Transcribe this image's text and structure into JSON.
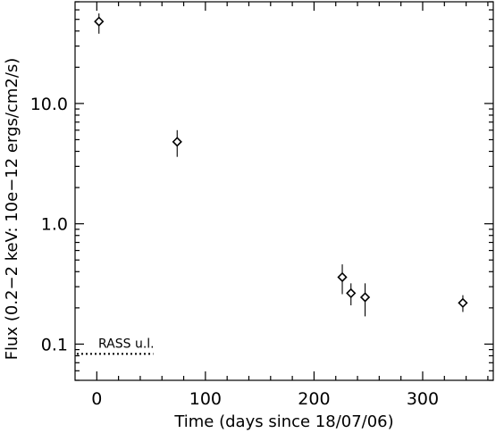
{
  "chart_data": {
    "type": "scatter",
    "xlabel": "Time (days since 18/07/06)",
    "ylabel": "Flux (0.2−2 keV: 10e−12 ergs/cm2/s)",
    "x_scale": "linear",
    "y_scale": "log",
    "xlim": [
      -20,
      365
    ],
    "ylim": [
      0.05,
      70
    ],
    "x_ticks": [
      0,
      100,
      200,
      300
    ],
    "x_tick_labels": [
      "0",
      "100",
      "200",
      "300"
    ],
    "y_ticks": [
      0.1,
      1.0,
      10.0
    ],
    "y_tick_labels": [
      "0.1",
      "1.0",
      "10.0"
    ],
    "marker": "diamond",
    "points": [
      {
        "x": 2,
        "y": 48,
        "y_lo": 38,
        "y_hi": 56
      },
      {
        "x": 74,
        "y": 4.8,
        "y_lo": 3.6,
        "y_hi": 6.0
      },
      {
        "x": 226,
        "y": 0.36,
        "y_lo": 0.26,
        "y_hi": 0.46
      },
      {
        "x": 234,
        "y": 0.265,
        "y_lo": 0.21,
        "y_hi": 0.32
      },
      {
        "x": 247,
        "y": 0.245,
        "y_lo": 0.17,
        "y_hi": 0.32
      },
      {
        "x": 337,
        "y": 0.22,
        "y_lo": 0.185,
        "y_hi": 0.255
      }
    ],
    "upper_limit": {
      "label": "RASS u.l.",
      "x_start": -20,
      "x_end": 52,
      "y": 0.083
    },
    "grid": false
  }
}
